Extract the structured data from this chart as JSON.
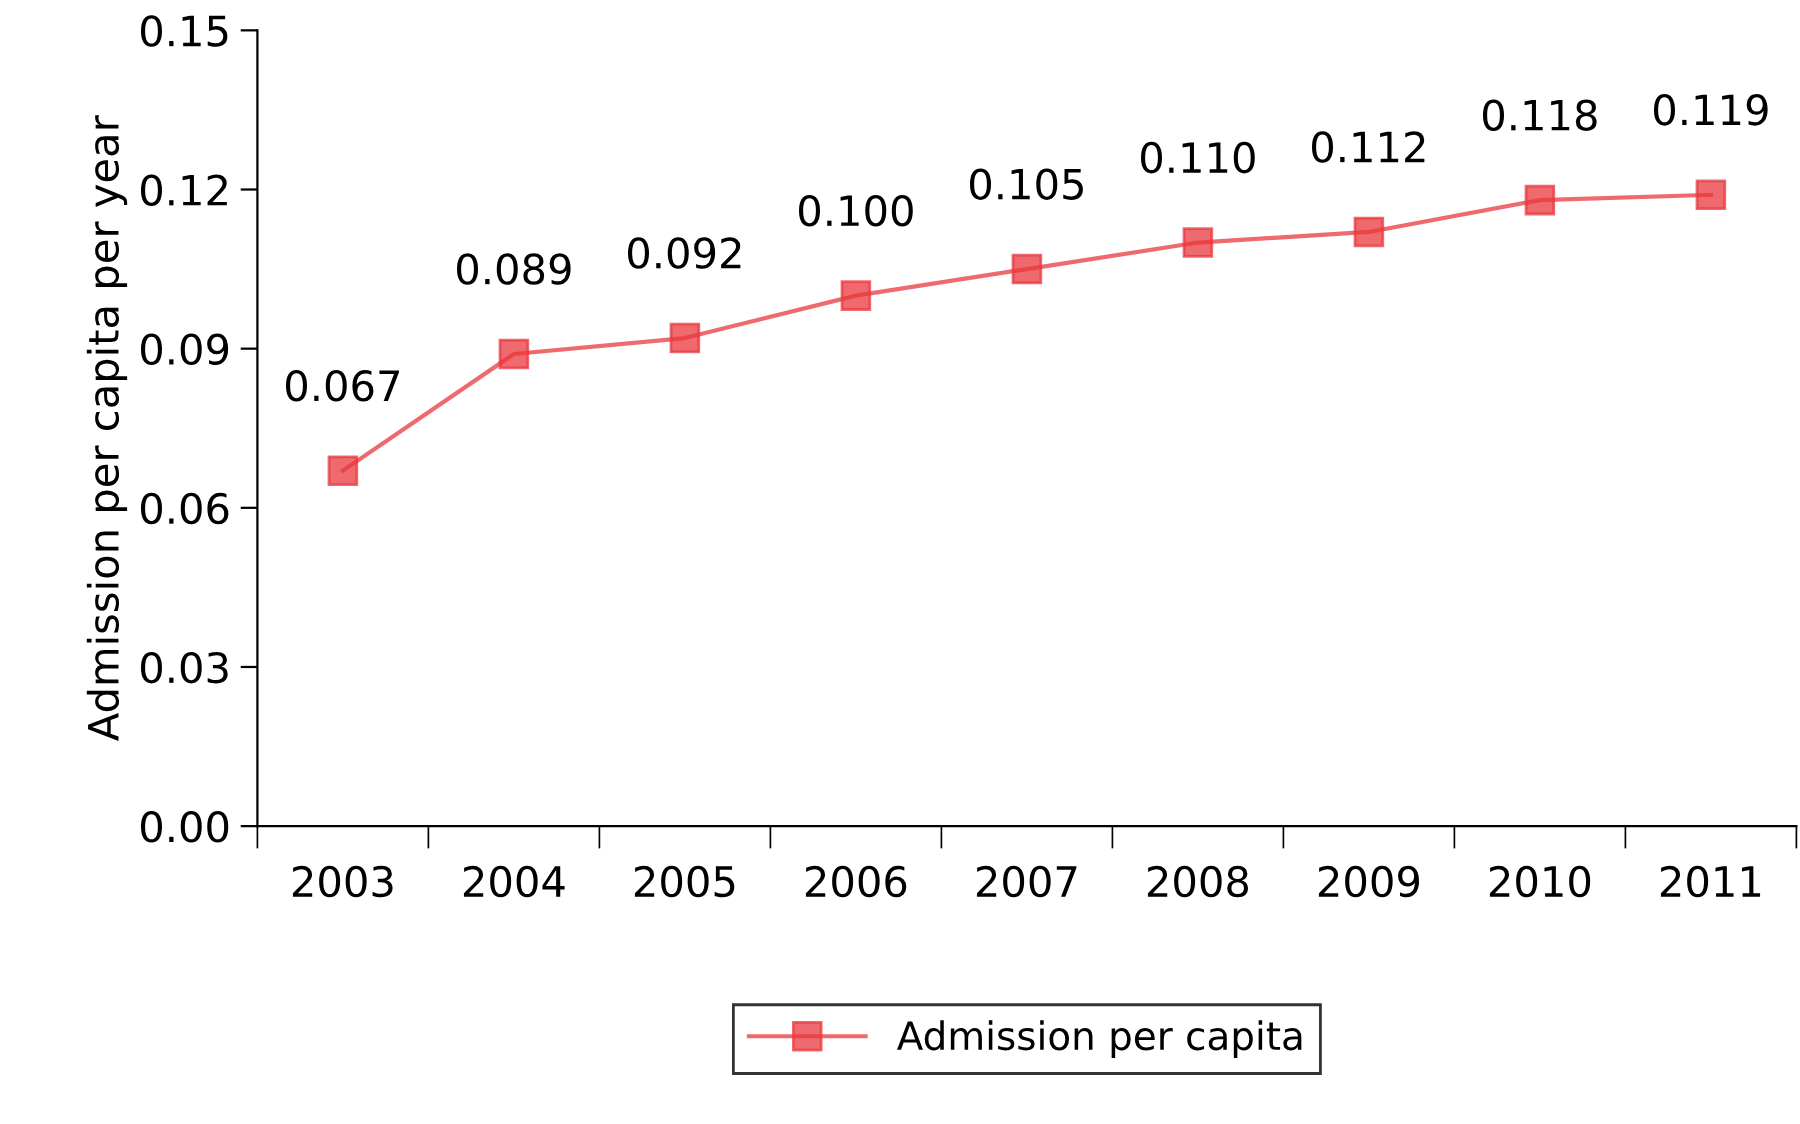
{
  "chart_data": {
    "type": "line",
    "ylabel": "Admission per capita per year",
    "categories": [
      "2003",
      "2004",
      "2005",
      "2006",
      "2007",
      "2008",
      "2009",
      "2010",
      "2011"
    ],
    "series": [
      {
        "name": "Admission per capita",
        "color": "#e8383d",
        "values": [
          0.067,
          0.089,
          0.092,
          0.1,
          0.105,
          0.11,
          0.112,
          0.118,
          0.119
        ],
        "value_labels": [
          "0.067",
          "0.089",
          "0.092",
          "0.100",
          "0.105",
          "0.110",
          "0.112",
          "0.118",
          "0.119"
        ]
      }
    ],
    "ylim": [
      0,
      0.15
    ],
    "yticks": [
      {
        "value": 0,
        "label": "0.00"
      },
      {
        "value": 0.03,
        "label": "0.03"
      },
      {
        "value": 0.06,
        "label": "0.06"
      },
      {
        "value": 0.09,
        "label": "0.09"
      },
      {
        "value": 0.12,
        "label": "0.12"
      },
      {
        "value": 0.15,
        "label": "0.15"
      }
    ],
    "marker": "square",
    "line_style": "solid",
    "legend": "bottom",
    "grid": false
  }
}
